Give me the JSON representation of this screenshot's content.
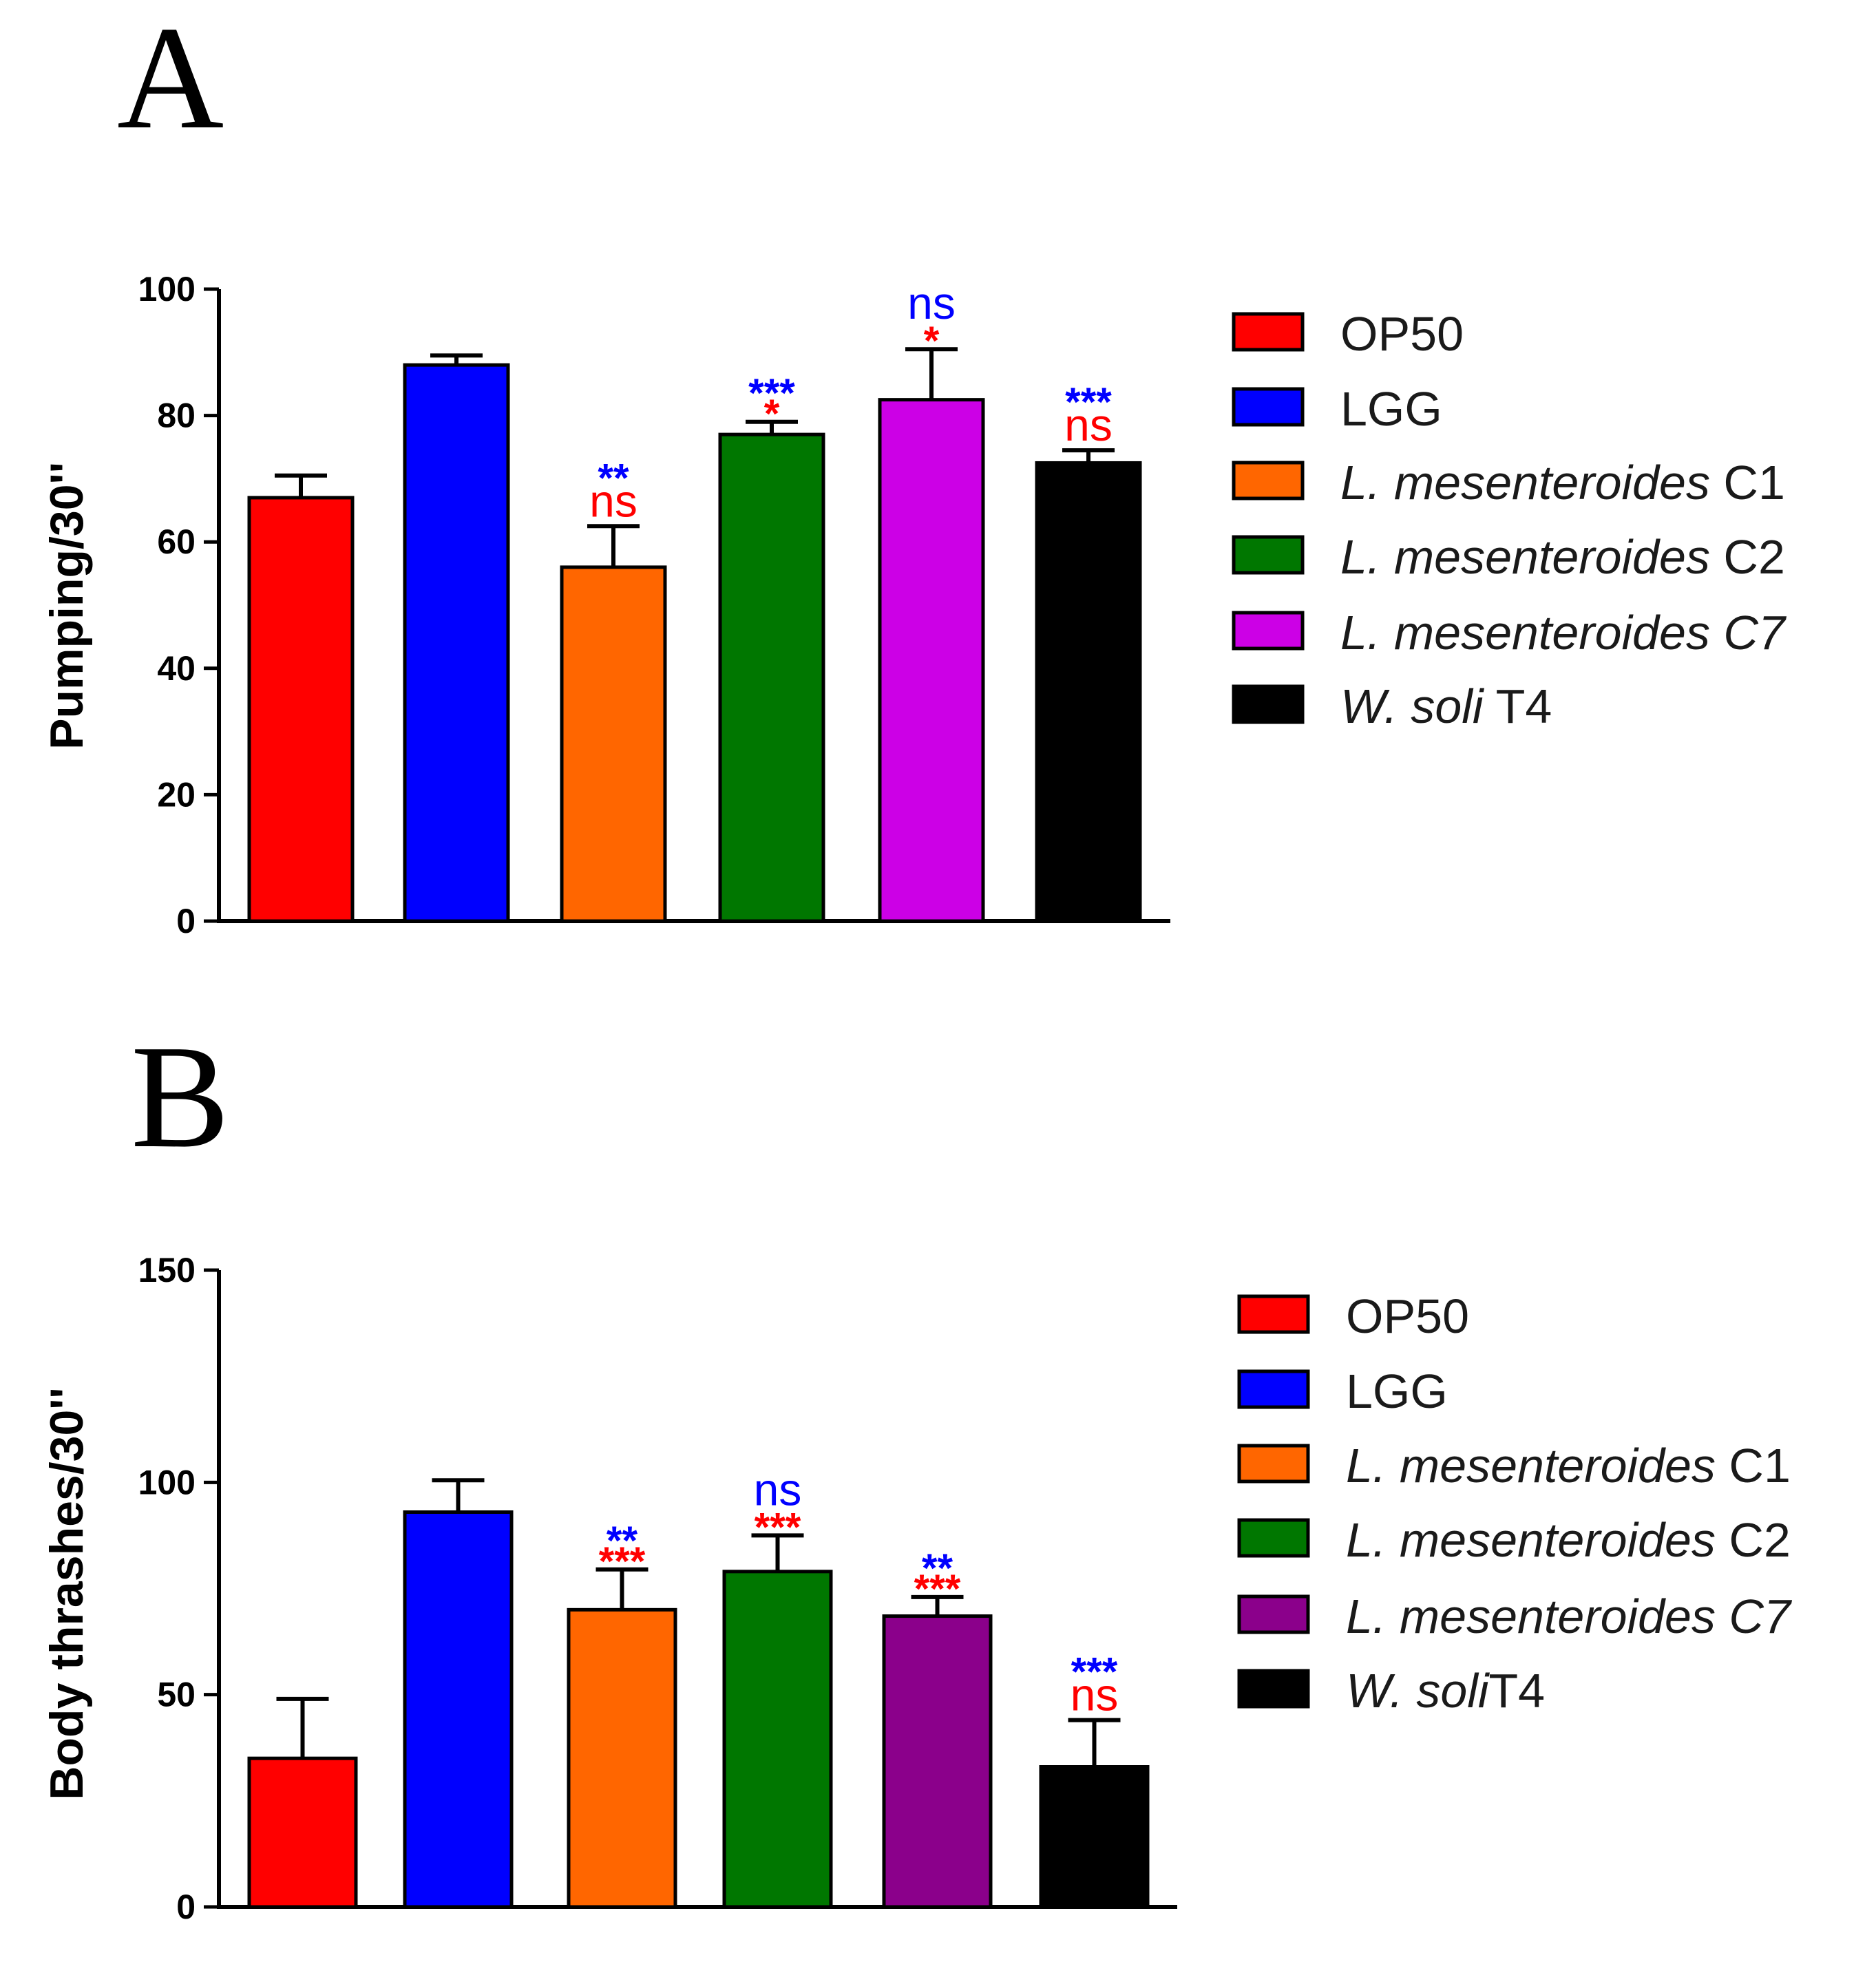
{
  "figure_labels": [
    "A",
    "B"
  ],
  "legend_items": [
    {
      "label": "OP50",
      "italic": "",
      "suffix": ""
    },
    {
      "label": "LGG",
      "italic": "",
      "suffix": ""
    },
    {
      "label": "",
      "italic": "L. mesenteroides",
      "suffix": " C1"
    },
    {
      "label": "",
      "italic": "L. mesenteroides",
      "suffix": " C2"
    },
    {
      "label": "",
      "italic": "L. mesenteroides C7",
      "suffix": ""
    },
    {
      "label": "",
      "italic": "W. soli",
      "suffix": " T4"
    }
  ],
  "chart_data": [
    {
      "type": "bar",
      "panel": "A",
      "ylabel": "Pumping/30''",
      "ylim": [
        0,
        100
      ],
      "yticks": [
        0,
        20,
        40,
        60,
        80,
        100
      ],
      "categories": [
        "OP50",
        "LGG",
        "L. mesenteroides C1",
        "L. mesenteroides C2",
        "L. mesenteroides C7",
        "W. soli T4"
      ],
      "colors": [
        "#ff0000",
        "#0000ff",
        "#ff6600",
        "#007700",
        "#cc00e6",
        "#000000"
      ],
      "values": [
        67,
        88,
        56,
        77,
        82.5,
        72.5
      ],
      "errors": [
        3.5,
        1.5,
        6.5,
        2,
        8,
        2
      ],
      "annotations": [
        [],
        [],
        [
          {
            "text": "ns",
            "color": "#ff0000"
          },
          {
            "text": "**",
            "color": "#0000ff"
          }
        ],
        [
          {
            "text": "*",
            "color": "#ff0000"
          },
          {
            "text": "***",
            "color": "#0000ff"
          }
        ],
        [
          {
            "text": "*",
            "color": "#ff0000"
          },
          {
            "text": "ns",
            "color": "#0000ff"
          }
        ],
        [
          {
            "text": "ns",
            "color": "#ff0000"
          },
          {
            "text": "***",
            "color": "#0000ff"
          }
        ]
      ],
      "legend": [
        "OP50",
        "LGG",
        "L. mesenteroides C1",
        "L. mesenteroides C2",
        "L. mesenteroides C7",
        "W. soli T4"
      ]
    },
    {
      "type": "bar",
      "panel": "B",
      "ylabel": "Body thrashes/30''",
      "ylim": [
        0,
        150
      ],
      "yticks": [
        0,
        50,
        100,
        150
      ],
      "categories": [
        "OP50",
        "LGG",
        "L. mesenteroides C1",
        "L. mesenteroides C2",
        "L. mesenteroides C7",
        "W. soliT4"
      ],
      "colors": [
        "#ff0000",
        "#0000ff",
        "#ff6600",
        "#007700",
        "#8b008b",
        "#000000"
      ],
      "values": [
        35,
        93,
        70,
        79,
        68.5,
        33
      ],
      "errors": [
        14,
        7.5,
        9.5,
        8.5,
        4.5,
        11
      ],
      "annotations": [
        [],
        [],
        [
          {
            "text": "***",
            "color": "#ff0000"
          },
          {
            "text": "**",
            "color": "#0000ff"
          }
        ],
        [
          {
            "text": "***",
            "color": "#ff0000"
          },
          {
            "text": "ns",
            "color": "#0000ff"
          }
        ],
        [
          {
            "text": "***",
            "color": "#ff0000"
          },
          {
            "text": "**",
            "color": "#0000ff"
          }
        ],
        [
          {
            "text": "ns",
            "color": "#ff0000"
          },
          {
            "text": "***",
            "color": "#0000ff"
          }
        ]
      ],
      "legend": [
        "OP50",
        "LGG",
        "L. mesenteroides C1",
        "L. mesenteroides C2",
        "L. mesenteroides C7",
        "W. soliT4"
      ]
    }
  ]
}
